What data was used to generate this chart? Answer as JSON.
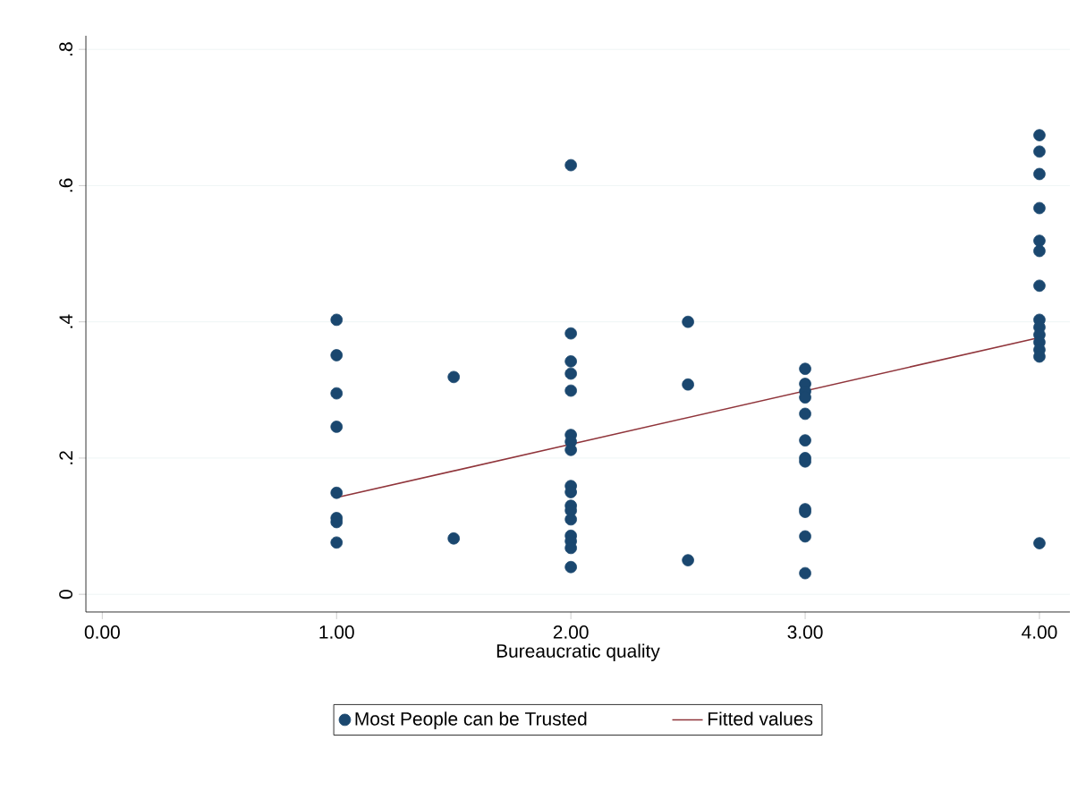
{
  "chart_data": {
    "type": "scatter",
    "xlabel": "Bureaucratic quality",
    "xlim": [
      -0.07,
      4.13
    ],
    "ylim": [
      -0.026,
      0.82
    ],
    "xticks": [
      {
        "value": 0,
        "label": "0.00"
      },
      {
        "value": 1,
        "label": "1.00"
      },
      {
        "value": 2,
        "label": "2.00"
      },
      {
        "value": 3,
        "label": "3.00"
      },
      {
        "value": 4,
        "label": "4.00"
      }
    ],
    "yticks": [
      {
        "value": 0,
        "label": "0"
      },
      {
        "value": 0.2,
        "label": ".2"
      },
      {
        "value": 0.4,
        "label": ".4"
      },
      {
        "value": 0.6,
        "label": ".6"
      },
      {
        "value": 0.8,
        "label": ".8"
      }
    ],
    "grid": "y",
    "legend": "bottom",
    "series": [
      {
        "name": "Most People can be Trusted",
        "color": "#1a476f",
        "marker": "circle",
        "x": [
          1,
          1,
          1,
          1,
          1,
          1,
          1,
          1,
          1.5,
          1.5,
          2,
          2,
          2,
          2,
          2,
          2,
          2,
          2,
          2,
          2,
          2,
          2,
          2,
          2,
          2,
          2,
          2,
          2.5,
          2.5,
          2.5,
          3,
          3,
          3,
          3,
          3,
          3,
          3,
          3,
          3,
          3,
          3,
          3,
          4,
          4,
          4,
          4,
          4,
          4,
          4,
          4,
          4,
          4,
          4,
          4,
          4,
          4
        ],
        "values": [
          0.403,
          0.351,
          0.295,
          0.246,
          0.149,
          0.112,
          0.106,
          0.076,
          0.319,
          0.082,
          0.63,
          0.383,
          0.342,
          0.324,
          0.299,
          0.234,
          0.224,
          0.212,
          0.159,
          0.15,
          0.13,
          0.123,
          0.11,
          0.086,
          0.078,
          0.068,
          0.04,
          0.4,
          0.308,
          0.05,
          0.331,
          0.309,
          0.298,
          0.289,
          0.265,
          0.226,
          0.2,
          0.195,
          0.125,
          0.121,
          0.085,
          0.031,
          0.674,
          0.65,
          0.617,
          0.567,
          0.519,
          0.504,
          0.453,
          0.403,
          0.392,
          0.381,
          0.37,
          0.359,
          0.349,
          0.075
        ]
      },
      {
        "name": "Fitted values",
        "type": "line",
        "color": "#90353b",
        "marker": "none",
        "line_style": "solid",
        "x": [
          1,
          4
        ],
        "values": [
          0.142,
          0.377
        ]
      }
    ]
  }
}
